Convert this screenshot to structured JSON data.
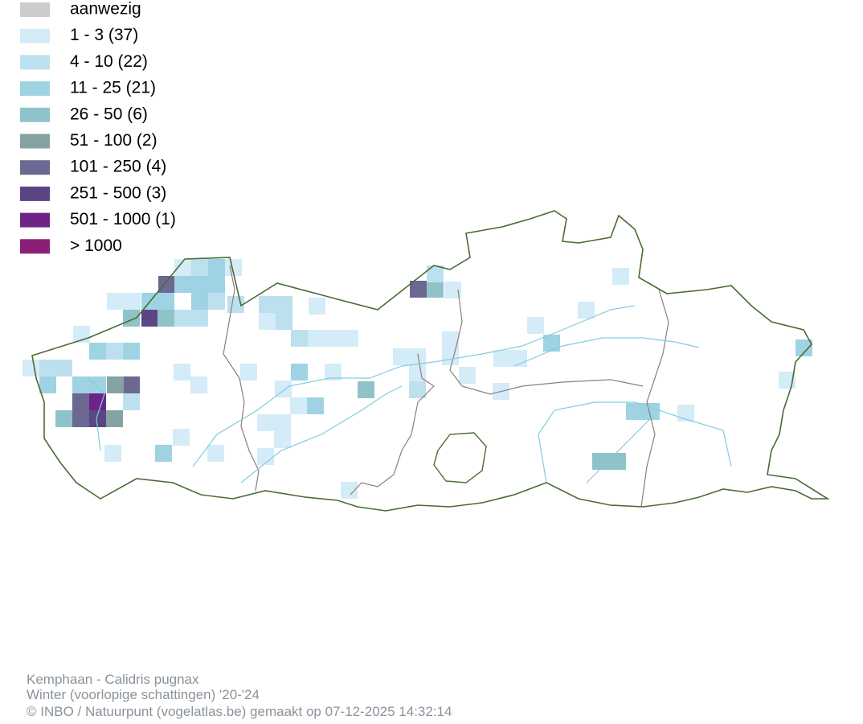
{
  "legend": [
    {
      "label": "aanwezig",
      "color": "#cccccc"
    },
    {
      "label": "1 - 3 (37)",
      "color": "#d4ebf8"
    },
    {
      "label": "4 - 10 (22)",
      "color": "#bde0ef"
    },
    {
      "label": "11 - 25 (21)",
      "color": "#9fd3e3"
    },
    {
      "label": "26 - 50 (6)",
      "color": "#8fc3c9"
    },
    {
      "label": "51 - 100 (2)",
      "color": "#86a3a3"
    },
    {
      "label": "101 - 250 (4)",
      "color": "#6b6891"
    },
    {
      "label": "251 - 500 (3)",
      "color": "#5b4585"
    },
    {
      "label": "501 - 1000 (1)",
      "color": "#6e2487"
    },
    {
      "label": "> 1000",
      "color": "#8b1f78"
    }
  ],
  "footer": {
    "species": "Kemphaan - Calidris pugnax",
    "season": "Winter (voorlopige schattingen) '20-'24",
    "credit": "© INBO / Natuurpunt (vogelatlas.be) gemaakt op 07-12-2025 14:32:14"
  }
}
